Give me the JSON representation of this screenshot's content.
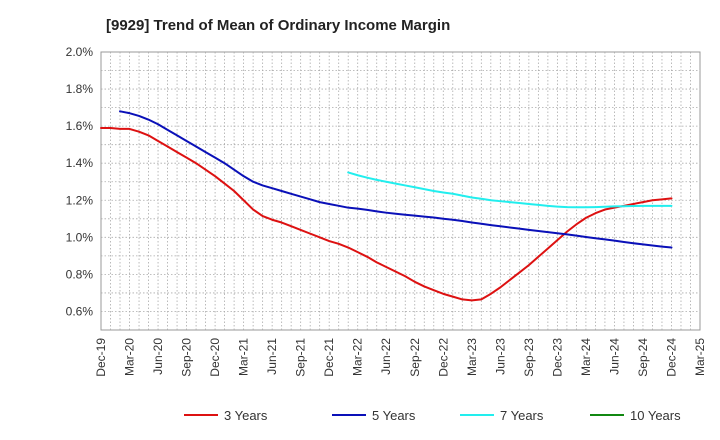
{
  "chart_data": {
    "type": "line",
    "title": "[9929]  Trend of Mean of Ordinary Income Margin",
    "xlabel": "",
    "ylabel": "",
    "x_ticks": [
      "Dec-19",
      "Mar-20",
      "Jun-20",
      "Sep-20",
      "Dec-20",
      "Mar-21",
      "Jun-21",
      "Sep-21",
      "Dec-21",
      "Mar-22",
      "Jun-22",
      "Sep-22",
      "Dec-22",
      "Mar-23",
      "Jun-23",
      "Sep-23",
      "Dec-23",
      "Mar-24",
      "Jun-24",
      "Sep-24",
      "Dec-24",
      "Mar-25"
    ],
    "y_ticks": [
      "0.6%",
      "0.8%",
      "1.0%",
      "1.2%",
      "1.4%",
      "1.6%",
      "1.8%",
      "2.0%"
    ],
    "ylim": [
      0.5,
      2.0
    ],
    "grid": true,
    "legend_position": "bottom",
    "series": [
      {
        "name": "3 Years",
        "color": "#dd1111",
        "points": [
          [
            "Dec-19",
            1.59
          ],
          [
            "Jan-20",
            1.59
          ],
          [
            "Feb-20",
            1.585
          ],
          [
            "Mar-20",
            1.585
          ],
          [
            "Apr-20",
            1.57
          ],
          [
            "May-20",
            1.55
          ],
          [
            "Jun-20",
            1.52
          ],
          [
            "Jul-20",
            1.49
          ],
          [
            "Aug-20",
            1.46
          ],
          [
            "Sep-20",
            1.43
          ],
          [
            "Oct-20",
            1.4
          ],
          [
            "Nov-20",
            1.365
          ],
          [
            "Dec-20",
            1.33
          ],
          [
            "Jan-21",
            1.29
          ],
          [
            "Feb-21",
            1.25
          ],
          [
            "Mar-21",
            1.2
          ],
          [
            "Apr-21",
            1.15
          ],
          [
            "May-21",
            1.115
          ],
          [
            "Jun-21",
            1.095
          ],
          [
            "Jul-21",
            1.08
          ],
          [
            "Aug-21",
            1.06
          ],
          [
            "Sep-21",
            1.04
          ],
          [
            "Oct-21",
            1.02
          ],
          [
            "Nov-21",
            1.0
          ],
          [
            "Dec-21",
            0.98
          ],
          [
            "Jan-22",
            0.965
          ],
          [
            "Feb-22",
            0.945
          ],
          [
            "Mar-22",
            0.92
          ],
          [
            "Apr-22",
            0.895
          ],
          [
            "May-22",
            0.865
          ],
          [
            "Jun-22",
            0.84
          ],
          [
            "Jul-22",
            0.815
          ],
          [
            "Aug-22",
            0.79
          ],
          [
            "Sep-22",
            0.76
          ],
          [
            "Oct-22",
            0.735
          ],
          [
            "Nov-22",
            0.715
          ],
          [
            "Dec-22",
            0.695
          ],
          [
            "Jan-23",
            0.68
          ],
          [
            "Feb-23",
            0.665
          ],
          [
            "Mar-23",
            0.66
          ],
          [
            "Apr-23",
            0.665
          ],
          [
            "May-23",
            0.695
          ],
          [
            "Jun-23",
            0.73
          ],
          [
            "Jul-23",
            0.77
          ],
          [
            "Aug-23",
            0.81
          ],
          [
            "Sep-23",
            0.85
          ],
          [
            "Oct-23",
            0.895
          ],
          [
            "Nov-23",
            0.94
          ],
          [
            "Dec-23",
            0.985
          ],
          [
            "Jan-24",
            1.03
          ],
          [
            "Feb-24",
            1.07
          ],
          [
            "Mar-24",
            1.105
          ],
          [
            "Apr-24",
            1.13
          ],
          [
            "May-24",
            1.15
          ],
          [
            "Jun-24",
            1.16
          ],
          [
            "Jul-24",
            1.17
          ],
          [
            "Aug-24",
            1.18
          ],
          [
            "Sep-24",
            1.19
          ],
          [
            "Oct-24",
            1.2
          ],
          [
            "Nov-24",
            1.205
          ],
          [
            "Dec-24",
            1.21
          ]
        ]
      },
      {
        "name": "5 Years",
        "color": "#0a10b8",
        "points": [
          [
            "Dec-19",
            null
          ],
          [
            "Feb-20",
            1.68
          ],
          [
            "Mar-20",
            1.67
          ],
          [
            "Apr-20",
            1.655
          ],
          [
            "May-20",
            1.635
          ],
          [
            "Jun-20",
            1.61
          ],
          [
            "Jul-20",
            1.58
          ],
          [
            "Aug-20",
            1.55
          ],
          [
            "Sep-20",
            1.52
          ],
          [
            "Oct-20",
            1.49
          ],
          [
            "Nov-20",
            1.46
          ],
          [
            "Dec-20",
            1.43
          ],
          [
            "Jan-21",
            1.4
          ],
          [
            "Feb-21",
            1.365
          ],
          [
            "Mar-21",
            1.33
          ],
          [
            "Apr-21",
            1.3
          ],
          [
            "May-21",
            1.28
          ],
          [
            "Jun-21",
            1.265
          ],
          [
            "Jul-21",
            1.25
          ],
          [
            "Aug-21",
            1.235
          ],
          [
            "Sep-21",
            1.22
          ],
          [
            "Oct-21",
            1.205
          ],
          [
            "Nov-21",
            1.19
          ],
          [
            "Dec-21",
            1.18
          ],
          [
            "Jan-22",
            1.17
          ],
          [
            "Feb-22",
            1.16
          ],
          [
            "Mar-22",
            1.155
          ],
          [
            "Apr-22",
            1.148
          ],
          [
            "May-22",
            1.14
          ],
          [
            "Jun-22",
            1.133
          ],
          [
            "Jul-22",
            1.127
          ],
          [
            "Aug-22",
            1.122
          ],
          [
            "Sep-22",
            1.117
          ],
          [
            "Oct-22",
            1.112
          ],
          [
            "Nov-22",
            1.107
          ],
          [
            "Dec-22",
            1.1
          ],
          [
            "Jan-23",
            1.095
          ],
          [
            "Feb-23",
            1.088
          ],
          [
            "Mar-23",
            1.08
          ],
          [
            "Apr-23",
            1.073
          ],
          [
            "May-23",
            1.066
          ],
          [
            "Jun-23",
            1.06
          ],
          [
            "Jul-23",
            1.053
          ],
          [
            "Aug-23",
            1.047
          ],
          [
            "Sep-23",
            1.04
          ],
          [
            "Oct-23",
            1.034
          ],
          [
            "Nov-23",
            1.028
          ],
          [
            "Dec-23",
            1.022
          ],
          [
            "Jan-24",
            1.016
          ],
          [
            "Feb-24",
            1.009
          ],
          [
            "Mar-24",
            1.002
          ],
          [
            "Apr-24",
            0.995
          ],
          [
            "May-24",
            0.989
          ],
          [
            "Jun-24",
            0.982
          ],
          [
            "Jul-24",
            0.975
          ],
          [
            "Aug-24",
            0.968
          ],
          [
            "Sep-24",
            0.962
          ],
          [
            "Oct-24",
            0.956
          ],
          [
            "Nov-24",
            0.95
          ],
          [
            "Dec-24",
            0.945
          ]
        ]
      },
      {
        "name": "7 Years",
        "color": "#22eeee",
        "points": [
          [
            "Feb-22",
            1.35
          ],
          [
            "Mar-22",
            1.335
          ],
          [
            "Apr-22",
            1.322
          ],
          [
            "May-22",
            1.31
          ],
          [
            "Jun-22",
            1.3
          ],
          [
            "Jul-22",
            1.29
          ],
          [
            "Aug-22",
            1.28
          ],
          [
            "Sep-22",
            1.27
          ],
          [
            "Oct-22",
            1.26
          ],
          [
            "Nov-22",
            1.25
          ],
          [
            "Dec-22",
            1.242
          ],
          [
            "Jan-23",
            1.235
          ],
          [
            "Feb-23",
            1.225
          ],
          [
            "Mar-23",
            1.215
          ],
          [
            "Apr-23",
            1.208
          ],
          [
            "May-23",
            1.2
          ],
          [
            "Jun-23",
            1.195
          ],
          [
            "Jul-23",
            1.19
          ],
          [
            "Aug-23",
            1.185
          ],
          [
            "Sep-23",
            1.18
          ],
          [
            "Oct-23",
            1.175
          ],
          [
            "Nov-23",
            1.17
          ],
          [
            "Dec-23",
            1.166
          ],
          [
            "Jan-24",
            1.163
          ],
          [
            "Feb-24",
            1.162
          ],
          [
            "Mar-24",
            1.162
          ],
          [
            "Apr-24",
            1.163
          ],
          [
            "May-24",
            1.165
          ],
          [
            "Jun-24",
            1.167
          ],
          [
            "Jul-24",
            1.168
          ],
          [
            "Aug-24",
            1.169
          ],
          [
            "Sep-24",
            1.17
          ],
          [
            "Oct-24",
            1.17
          ],
          [
            "Nov-24",
            1.17
          ],
          [
            "Dec-24",
            1.17
          ]
        ]
      },
      {
        "name": "10 Years",
        "color": "#118811",
        "points": []
      }
    ]
  }
}
